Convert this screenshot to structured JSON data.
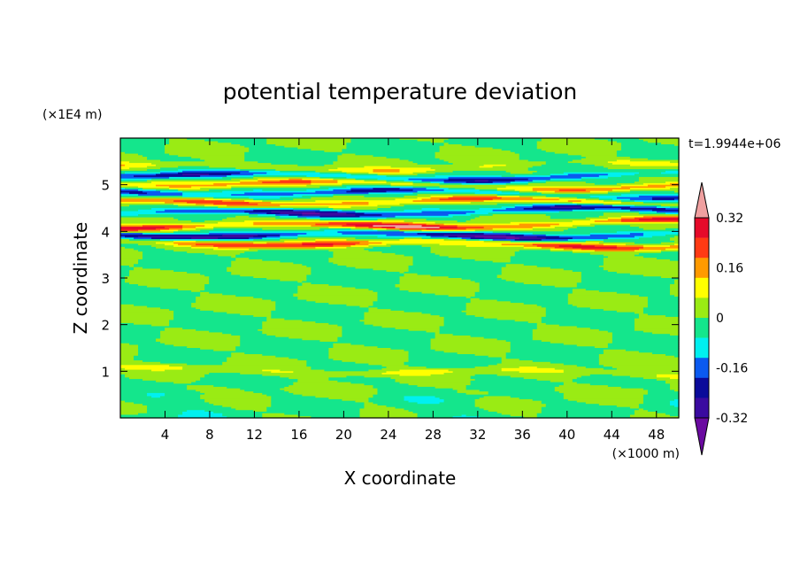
{
  "chart_data": {
    "type": "heatmap",
    "title": "potential temperature deviation",
    "xlabel": "X coordinate",
    "ylabel": "Z coordinate",
    "x_unit": "(×1000 m)",
    "y_unit": "(×1E4 m)",
    "time_label": "t=1.9944e+06",
    "xlim": [
      0,
      50
    ],
    "ylim": [
      0,
      6
    ],
    "x_ticks": [
      4,
      8,
      12,
      16,
      20,
      24,
      28,
      32,
      36,
      40,
      44,
      48
    ],
    "y_ticks": [
      1,
      2,
      3,
      4,
      5
    ],
    "colorbar": {
      "levels": [
        -0.4,
        -0.32,
        -0.24,
        -0.16,
        -0.08,
        0,
        0.08,
        0.16,
        0.24,
        0.32,
        0.4
      ],
      "tick_labels": [
        "-0.32",
        "-0.16",
        "0",
        "0.16",
        "0.32"
      ],
      "tick_values": [
        -0.32,
        -0.16,
        0,
        0.16,
        0.32
      ],
      "colors": [
        "#6a0aa0",
        "#3a0aa0",
        "#0a0a9a",
        "#0a5af0",
        "#00f0f0",
        "#14e68c",
        "#9aeb14",
        "#ffff00",
        "#ff9a00",
        "#ff3a14",
        "#e60a2a",
        "#f0a0a0"
      ],
      "extend": "both"
    },
    "bands": [
      {
        "z": 0.55,
        "amp": 0.03
      },
      {
        "z": 0.98,
        "amp": 0.12
      },
      {
        "z": 3.75,
        "amp": 0.34
      },
      {
        "z": 3.95,
        "amp": -0.4
      },
      {
        "z": 4.15,
        "amp": 0.42
      },
      {
        "z": 4.4,
        "amp": -0.36
      },
      {
        "z": 4.6,
        "amp": 0.3
      },
      {
        "z": 4.8,
        "amp": -0.28
      },
      {
        "z": 5.0,
        "amp": 0.26
      },
      {
        "z": 5.2,
        "amp": -0.3
      },
      {
        "z": 5.4,
        "amp": 0.14
      }
    ]
  }
}
